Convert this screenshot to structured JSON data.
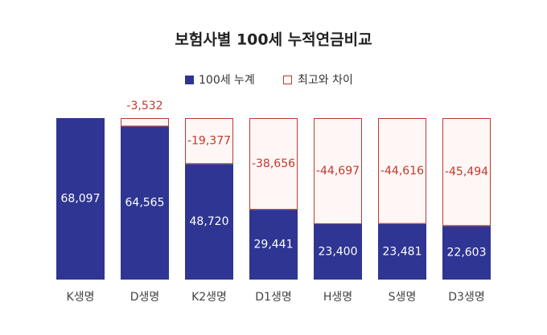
{
  "chart_data": {
    "type": "stacked_bar",
    "title": "보험사별 100세 누적연금비교",
    "categories": [
      "K생명",
      "D생명",
      "K2생명",
      "D1생명",
      "H생명",
      "S생명",
      "D3생명"
    ],
    "series": [
      {
        "name": "100세 누계",
        "color": "#2f3592",
        "values": [
          68097,
          64565,
          48720,
          29441,
          23400,
          23481,
          22603
        ],
        "value_labels": [
          "68,097",
          "64,565",
          "48,720",
          "29,441",
          "23,400",
          "23,481",
          "22,603"
        ]
      },
      {
        "name": "최고와 차이",
        "color": "#c0392b",
        "values": [
          0,
          -3532,
          -19377,
          -38656,
          -44697,
          -44616,
          -45494
        ],
        "value_labels": [
          null,
          "-3,532",
          "-19,377",
          "-38,656",
          "-44,697",
          "-44,616",
          "-45,494"
        ]
      }
    ],
    "legend": "top"
  }
}
